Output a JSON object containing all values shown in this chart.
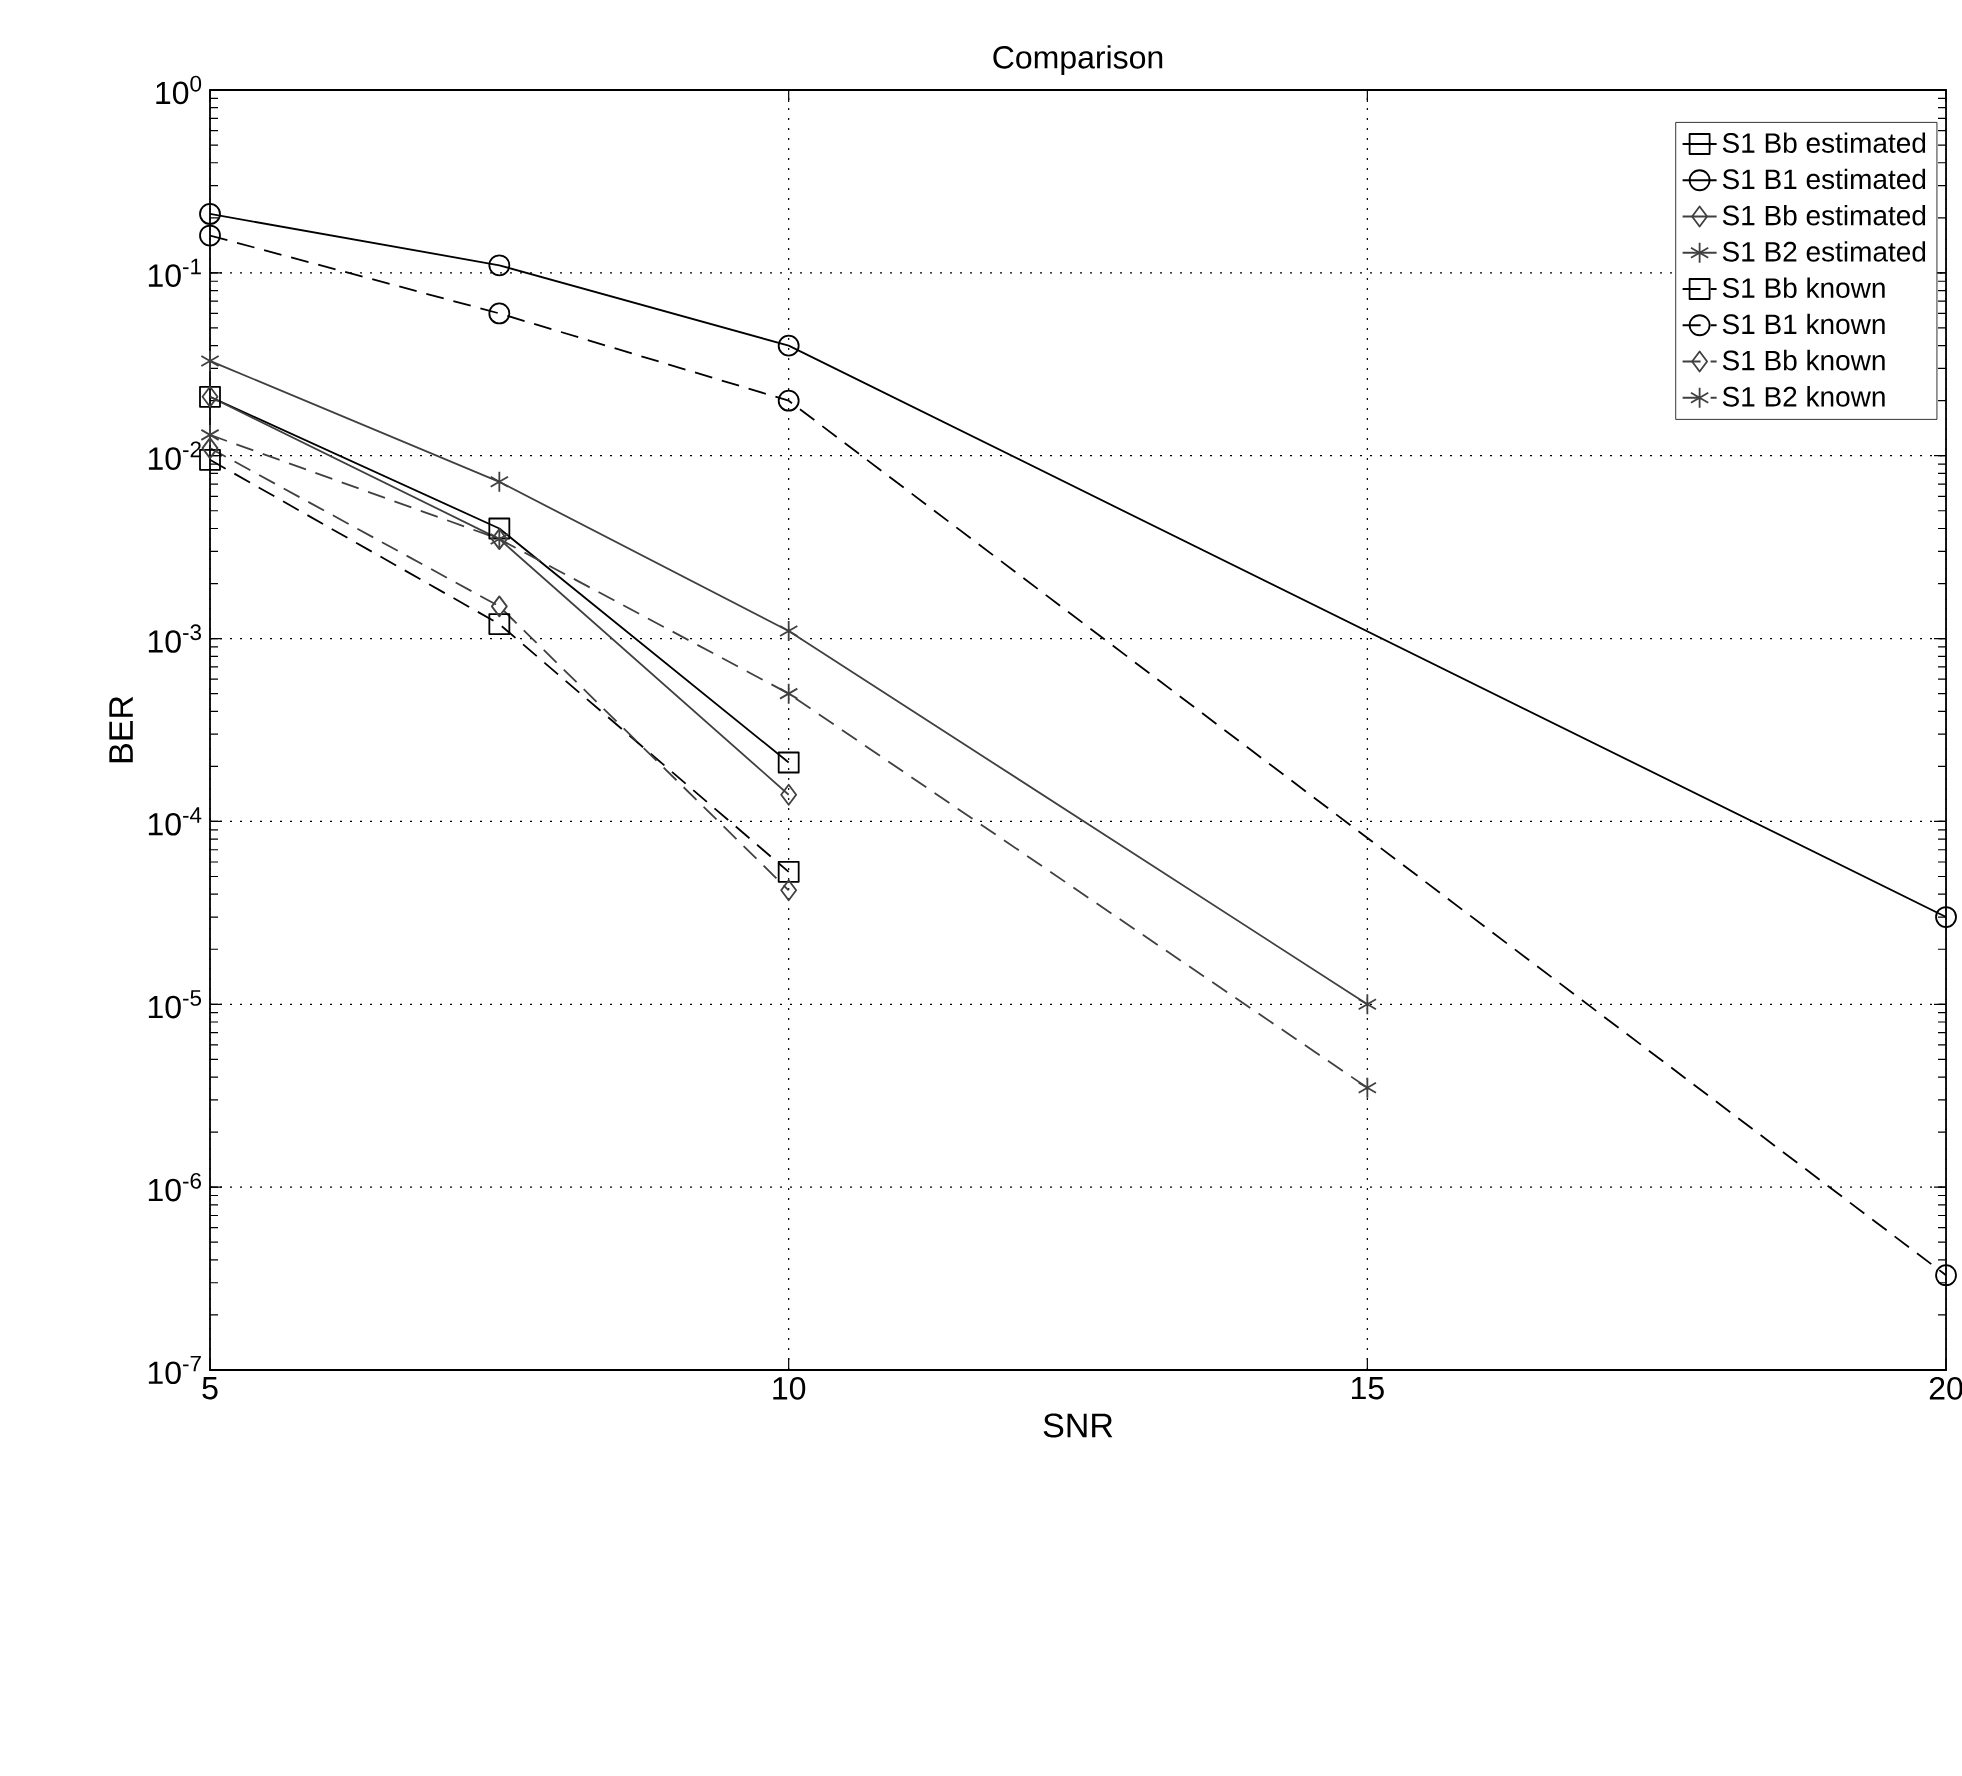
{
  "chart_data": {
    "type": "line",
    "title": "Comparison",
    "xlabel": "SNR",
    "ylabel": "BER",
    "xlim": [
      5,
      20
    ],
    "xticks": [
      5,
      10,
      15,
      20
    ],
    "ylim": [
      1e-07,
      1
    ],
    "yticks": [
      {
        "value": 1e-07,
        "label": "10$^{-7}$"
      },
      {
        "value": 1e-06,
        "label": "10$^{-6}$"
      },
      {
        "value": 1e-05,
        "label": "10$^{-5}$"
      },
      {
        "value": 0.0001,
        "label": "10$^{-4}$"
      },
      {
        "value": 0.001,
        "label": "10$^{-3}$"
      },
      {
        "value": 0.01,
        "label": "10$^{-2}$"
      },
      {
        "value": 0.1,
        "label": "10$^{-1}$"
      },
      {
        "value": 1,
        "label": "10$^{0}$"
      }
    ],
    "log": "y",
    "grid": true,
    "legend": "top right",
    "series": [
      {
        "name": "S1 Bb estimated",
        "color": "#000000",
        "marker": "square",
        "line_style": "solid",
        "x": [
          5,
          7.5,
          10
        ],
        "values": [
          0.021,
          0.004,
          0.00021
        ]
      },
      {
        "name": "S1 B1 estimated",
        "color": "#000000",
        "marker": "circle",
        "line_style": "solid",
        "x": [
          5,
          7.5,
          10,
          20
        ],
        "values": [
          0.21,
          0.11,
          0.04,
          3e-05
        ]
      },
      {
        "name": "S1 Bb estimated",
        "color": "#404040",
        "marker": "diamond",
        "line_style": "solid",
        "x": [
          5,
          7.5,
          10
        ],
        "values": [
          0.021,
          0.0035,
          0.00014
        ]
      },
      {
        "name": "S1 B2 estimated",
        "color": "#404040",
        "marker": "cross",
        "line_style": "solid",
        "x": [
          5,
          7.5,
          10,
          15
        ],
        "values": [
          0.033,
          0.0072,
          0.0011,
          1e-05
        ]
      },
      {
        "name": "S1 Bb known",
        "color": "#000000",
        "marker": "square",
        "line_style": "dashed",
        "x": [
          5,
          7.5,
          10
        ],
        "values": [
          0.0095,
          0.0012,
          5.3e-05
        ]
      },
      {
        "name": "S1 B1 known",
        "color": "#000000",
        "marker": "circle",
        "line_style": "dashed",
        "x": [
          5,
          7.5,
          10,
          20
        ],
        "values": [
          0.16,
          0.06,
          0.02,
          3.3e-07
        ]
      },
      {
        "name": "S1 Bb known",
        "color": "#404040",
        "marker": "diamond",
        "line_style": "dashed",
        "x": [
          5,
          7.5,
          10
        ],
        "values": [
          0.011,
          0.0015,
          4.2e-05
        ]
      },
      {
        "name": "S1 B2 known",
        "color": "#404040",
        "marker": "cross",
        "line_style": "dashed",
        "x": [
          5,
          7.5,
          10,
          15
        ],
        "values": [
          0.013,
          0.0035,
          0.0005,
          3.5e-06
        ]
      }
    ]
  }
}
